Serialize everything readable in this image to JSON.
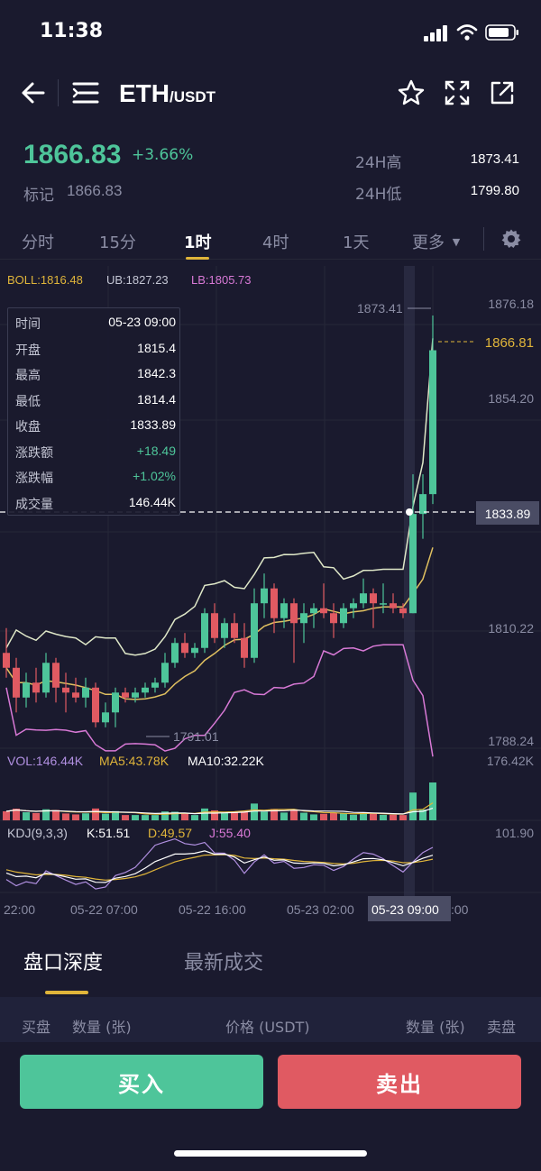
{
  "status_bar": {
    "time": "11:38"
  },
  "header": {
    "base": "ETH",
    "quote": "/USDT"
  },
  "ticker": {
    "price": "1866.83",
    "change_pct": "+3.66%",
    "mark_label": "标记",
    "mark_value": "1866.83",
    "high_label": "24H高",
    "high_value": "1873.41",
    "low_label": "24H低",
    "low_value": "1799.80"
  },
  "tabs": [
    {
      "label": "分时",
      "active": false
    },
    {
      "label": "15分",
      "active": false
    },
    {
      "label": "1时",
      "active": true
    },
    {
      "label": "4时",
      "active": false
    },
    {
      "label": "1天",
      "active": false
    },
    {
      "label": "更多",
      "active": false
    }
  ],
  "boll_legend": {
    "boll": "BOLL:1816.48",
    "ub": "UB:1827.23",
    "lb": "LB:1805.73"
  },
  "ohlc_tooltip": [
    {
      "k": "时间",
      "v": "05-23 09:00"
    },
    {
      "k": "开盘",
      "v": "1815.4"
    },
    {
      "k": "最高",
      "v": "1842.3"
    },
    {
      "k": "最低",
      "v": "1814.4"
    },
    {
      "k": "收盘",
      "v": "1833.89"
    },
    {
      "k": "涨跌额",
      "v": "+18.49"
    },
    {
      "k": "涨跌幅",
      "v": "+1.02%"
    },
    {
      "k": "成交量",
      "v": "146.44K"
    }
  ],
  "chart_data": {
    "type": "candlestick",
    "price_axis": [
      "1876.18",
      "1854.20",
      "1810.22",
      "1788.24"
    ],
    "high_marker": "1873.41",
    "low_marker": "1791.01",
    "last_price_tag": "1866.81",
    "crosshair_price_tag": "1833.89",
    "vol_legend": {
      "vol": "VOL:146.44K",
      "ma5": "MA5:43.78K",
      "ma10": "MA10:32.22K"
    },
    "vol_axis": "176.42K",
    "kdj_legend": {
      "kdj": "KDJ(9,3,3)",
      "k": "K:51.51",
      "d": "D:49.57",
      "j": "J:55.40"
    },
    "kdj_axis": "101.90",
    "time_axis": [
      "22:00",
      "05-22 07:00",
      "05-22 16:00",
      "05-23 02:00",
      "05-23 09:00",
      ":00"
    ],
    "candles": [
      [
        1806,
        1811,
        1801,
        1803
      ],
      [
        1803,
        1805,
        1794,
        1797
      ],
      [
        1797,
        1802,
        1795,
        1800
      ],
      [
        1800,
        1803,
        1796,
        1798
      ],
      [
        1798,
        1806,
        1797,
        1804
      ],
      [
        1804,
        1805,
        1796,
        1799
      ],
      [
        1799,
        1802,
        1794,
        1798
      ],
      [
        1798,
        1801,
        1796,
        1797
      ],
      [
        1797,
        1801,
        1795,
        1799
      ],
      [
        1799,
        1800,
        1791,
        1792
      ],
      [
        1792,
        1796,
        1791,
        1794
      ],
      [
        1794,
        1799,
        1791,
        1798
      ],
      [
        1798,
        1799,
        1796,
        1797
      ],
      [
        1797,
        1799,
        1796,
        1798
      ],
      [
        1798,
        1800,
        1797,
        1799
      ],
      [
        1799,
        1801,
        1798,
        1800
      ],
      [
        1800,
        1806,
        1799,
        1804
      ],
      [
        1804,
        1809,
        1803,
        1808
      ],
      [
        1808,
        1810,
        1805,
        1806
      ],
      [
        1806,
        1808,
        1805,
        1807
      ],
      [
        1807,
        1815,
        1806,
        1814
      ],
      [
        1814,
        1816,
        1808,
        1809
      ],
      [
        1809,
        1813,
        1807,
        1812
      ],
      [
        1812,
        1814,
        1808,
        1809
      ],
      [
        1809,
        1812,
        1803,
        1805
      ],
      [
        1805,
        1819,
        1804,
        1816
      ],
      [
        1816,
        1822,
        1813,
        1819
      ],
      [
        1819,
        1820,
        1810,
        1813
      ],
      [
        1813,
        1817,
        1811,
        1816
      ],
      [
        1816,
        1817,
        1804,
        1812
      ],
      [
        1812,
        1816,
        1808,
        1814
      ],
      [
        1814,
        1816,
        1811,
        1815
      ],
      [
        1815,
        1820,
        1813,
        1814
      ],
      [
        1814,
        1816,
        1809,
        1812
      ],
      [
        1812,
        1816,
        1811,
        1815
      ],
      [
        1815,
        1817,
        1813,
        1816
      ],
      [
        1816,
        1821,
        1815,
        1818
      ],
      [
        1818,
        1819,
        1811,
        1816
      ],
      [
        1816,
        1820,
        1814,
        1816
      ],
      [
        1816,
        1818,
        1814,
        1815
      ],
      [
        1815,
        1816,
        1813,
        1814
      ],
      [
        1814,
        1842,
        1814,
        1834
      ],
      [
        1834,
        1842,
        1829,
        1838
      ],
      [
        1838,
        1874,
        1836,
        1867
      ]
    ]
  },
  "order_book": {
    "tab_depth": "盘口深度",
    "tab_trades": "最新成交",
    "col_bid": "买盘",
    "col_qty_left": "数量 (张)",
    "col_price": "价格 (USDT)",
    "col_qty_right": "数量 (张)",
    "col_ask": "卖盘"
  },
  "actions": {
    "buy": "买入",
    "sell": "卖出"
  },
  "colors": {
    "up": "#4ec59a",
    "down": "#e05a62",
    "accent": "#e0b53a",
    "bg": "#1a1a2e"
  }
}
